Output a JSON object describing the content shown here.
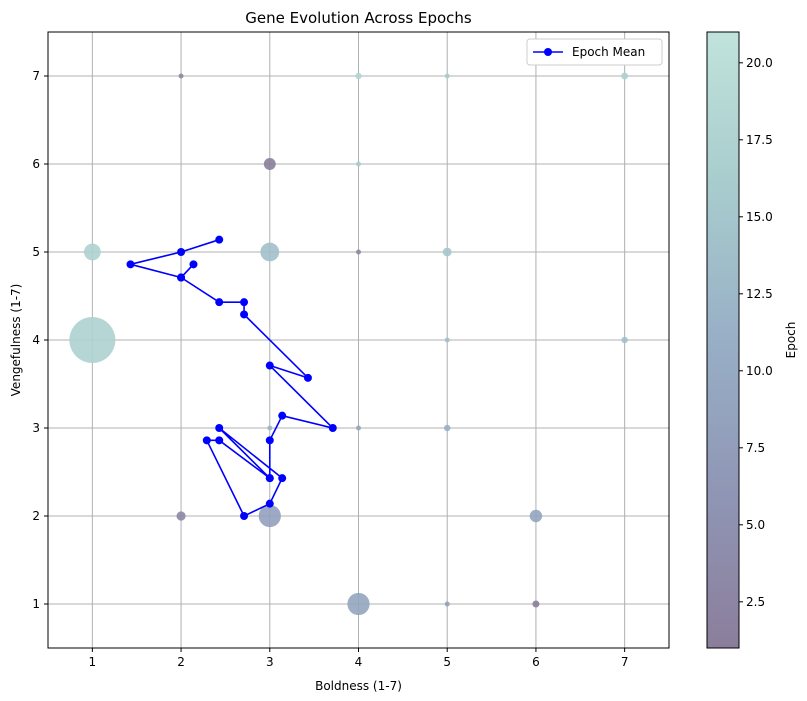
{
  "chart_data": {
    "type": "scatter",
    "title": "Gene Evolution Across Epochs",
    "xlabel": "Boldness (1-7)",
    "ylabel": "Vengefulness (1-7)",
    "xlim": [
      0.5,
      7.5
    ],
    "ylim": [
      0.5,
      7.5
    ],
    "xticks": [
      1,
      2,
      3,
      4,
      5,
      6,
      7
    ],
    "yticks": [
      1,
      2,
      3,
      4,
      5,
      6,
      7
    ],
    "grid": true,
    "legend": {
      "position": "top-right",
      "entries": [
        "Epoch Mean"
      ]
    },
    "colorbar": {
      "label": "Epoch",
      "range": [
        1,
        21
      ],
      "ticks": [
        2.5,
        5.0,
        7.5,
        10.0,
        12.5,
        15.0,
        17.5,
        20.0
      ],
      "tick_labels": [
        "2.5",
        "5.0",
        "7.5",
        "10.0",
        "12.5",
        "15.0",
        "17.5",
        "20.0"
      ],
      "colormap_stops": [
        "#8b7e9b",
        "#8f96b5",
        "#98afc6",
        "#a8cccd",
        "#c1e3dc"
      ]
    },
    "series": [
      {
        "name": "Epoch Mean",
        "color": "#0000ff",
        "x": [
          2.43,
          2.0,
          1.43,
          2.0,
          2.14,
          2.0,
          2.43,
          2.71,
          2.71,
          3.43,
          3.0,
          3.71,
          3.14,
          3.0,
          3.0,
          2.43,
          3.14,
          3.0,
          2.71,
          2.29,
          2.43,
          3.0
        ],
        "y": [
          5.14,
          5.0,
          4.86,
          4.71,
          4.86,
          4.71,
          4.43,
          4.43,
          4.29,
          3.57,
          3.71,
          3.0,
          3.14,
          2.86,
          2.43,
          3.0,
          2.43,
          2.14,
          2.0,
          2.86,
          2.86,
          2.43
        ]
      }
    ],
    "bubbles": [
      {
        "x": 1,
        "y": 4,
        "epoch": 17,
        "count": 30
      },
      {
        "x": 1,
        "y": 5,
        "epoch": 17,
        "count": 4
      },
      {
        "x": 2,
        "y": 7,
        "epoch": 3,
        "count": 0.3
      },
      {
        "x": 2,
        "y": 2,
        "epoch": 3,
        "count": 1.2
      },
      {
        "x": 3,
        "y": 6,
        "epoch": 1,
        "count": 2
      },
      {
        "x": 3,
        "y": 5,
        "epoch": 14,
        "count": 5
      },
      {
        "x": 3,
        "y": 3,
        "epoch": 12,
        "count": 0.3
      },
      {
        "x": 3,
        "y": 2,
        "epoch": 8,
        "count": 7
      },
      {
        "x": 4,
        "y": 7,
        "epoch": 18,
        "count": 0.6
      },
      {
        "x": 4,
        "y": 6,
        "epoch": 16,
        "count": 0.2
      },
      {
        "x": 4,
        "y": 5,
        "epoch": 3,
        "count": 0.3
      },
      {
        "x": 4,
        "y": 3,
        "epoch": 9,
        "count": 0.3
      },
      {
        "x": 4,
        "y": 1,
        "epoch": 9,
        "count": 7
      },
      {
        "x": 5,
        "y": 7,
        "epoch": 16,
        "count": 0.2
      },
      {
        "x": 5,
        "y": 5,
        "epoch": 15,
        "count": 1.1
      },
      {
        "x": 5,
        "y": 4,
        "epoch": 14,
        "count": 0.2
      },
      {
        "x": 5,
        "y": 3,
        "epoch": 11,
        "count": 0.6
      },
      {
        "x": 5,
        "y": 1,
        "epoch": 8,
        "count": 0.2
      },
      {
        "x": 6,
        "y": 2,
        "epoch": 9,
        "count": 2.2
      },
      {
        "x": 6,
        "y": 1,
        "epoch": 1,
        "count": 0.7
      },
      {
        "x": 7,
        "y": 7,
        "epoch": 17,
        "count": 0.7
      },
      {
        "x": 7,
        "y": 4,
        "epoch": 14,
        "count": 0.6
      }
    ]
  }
}
